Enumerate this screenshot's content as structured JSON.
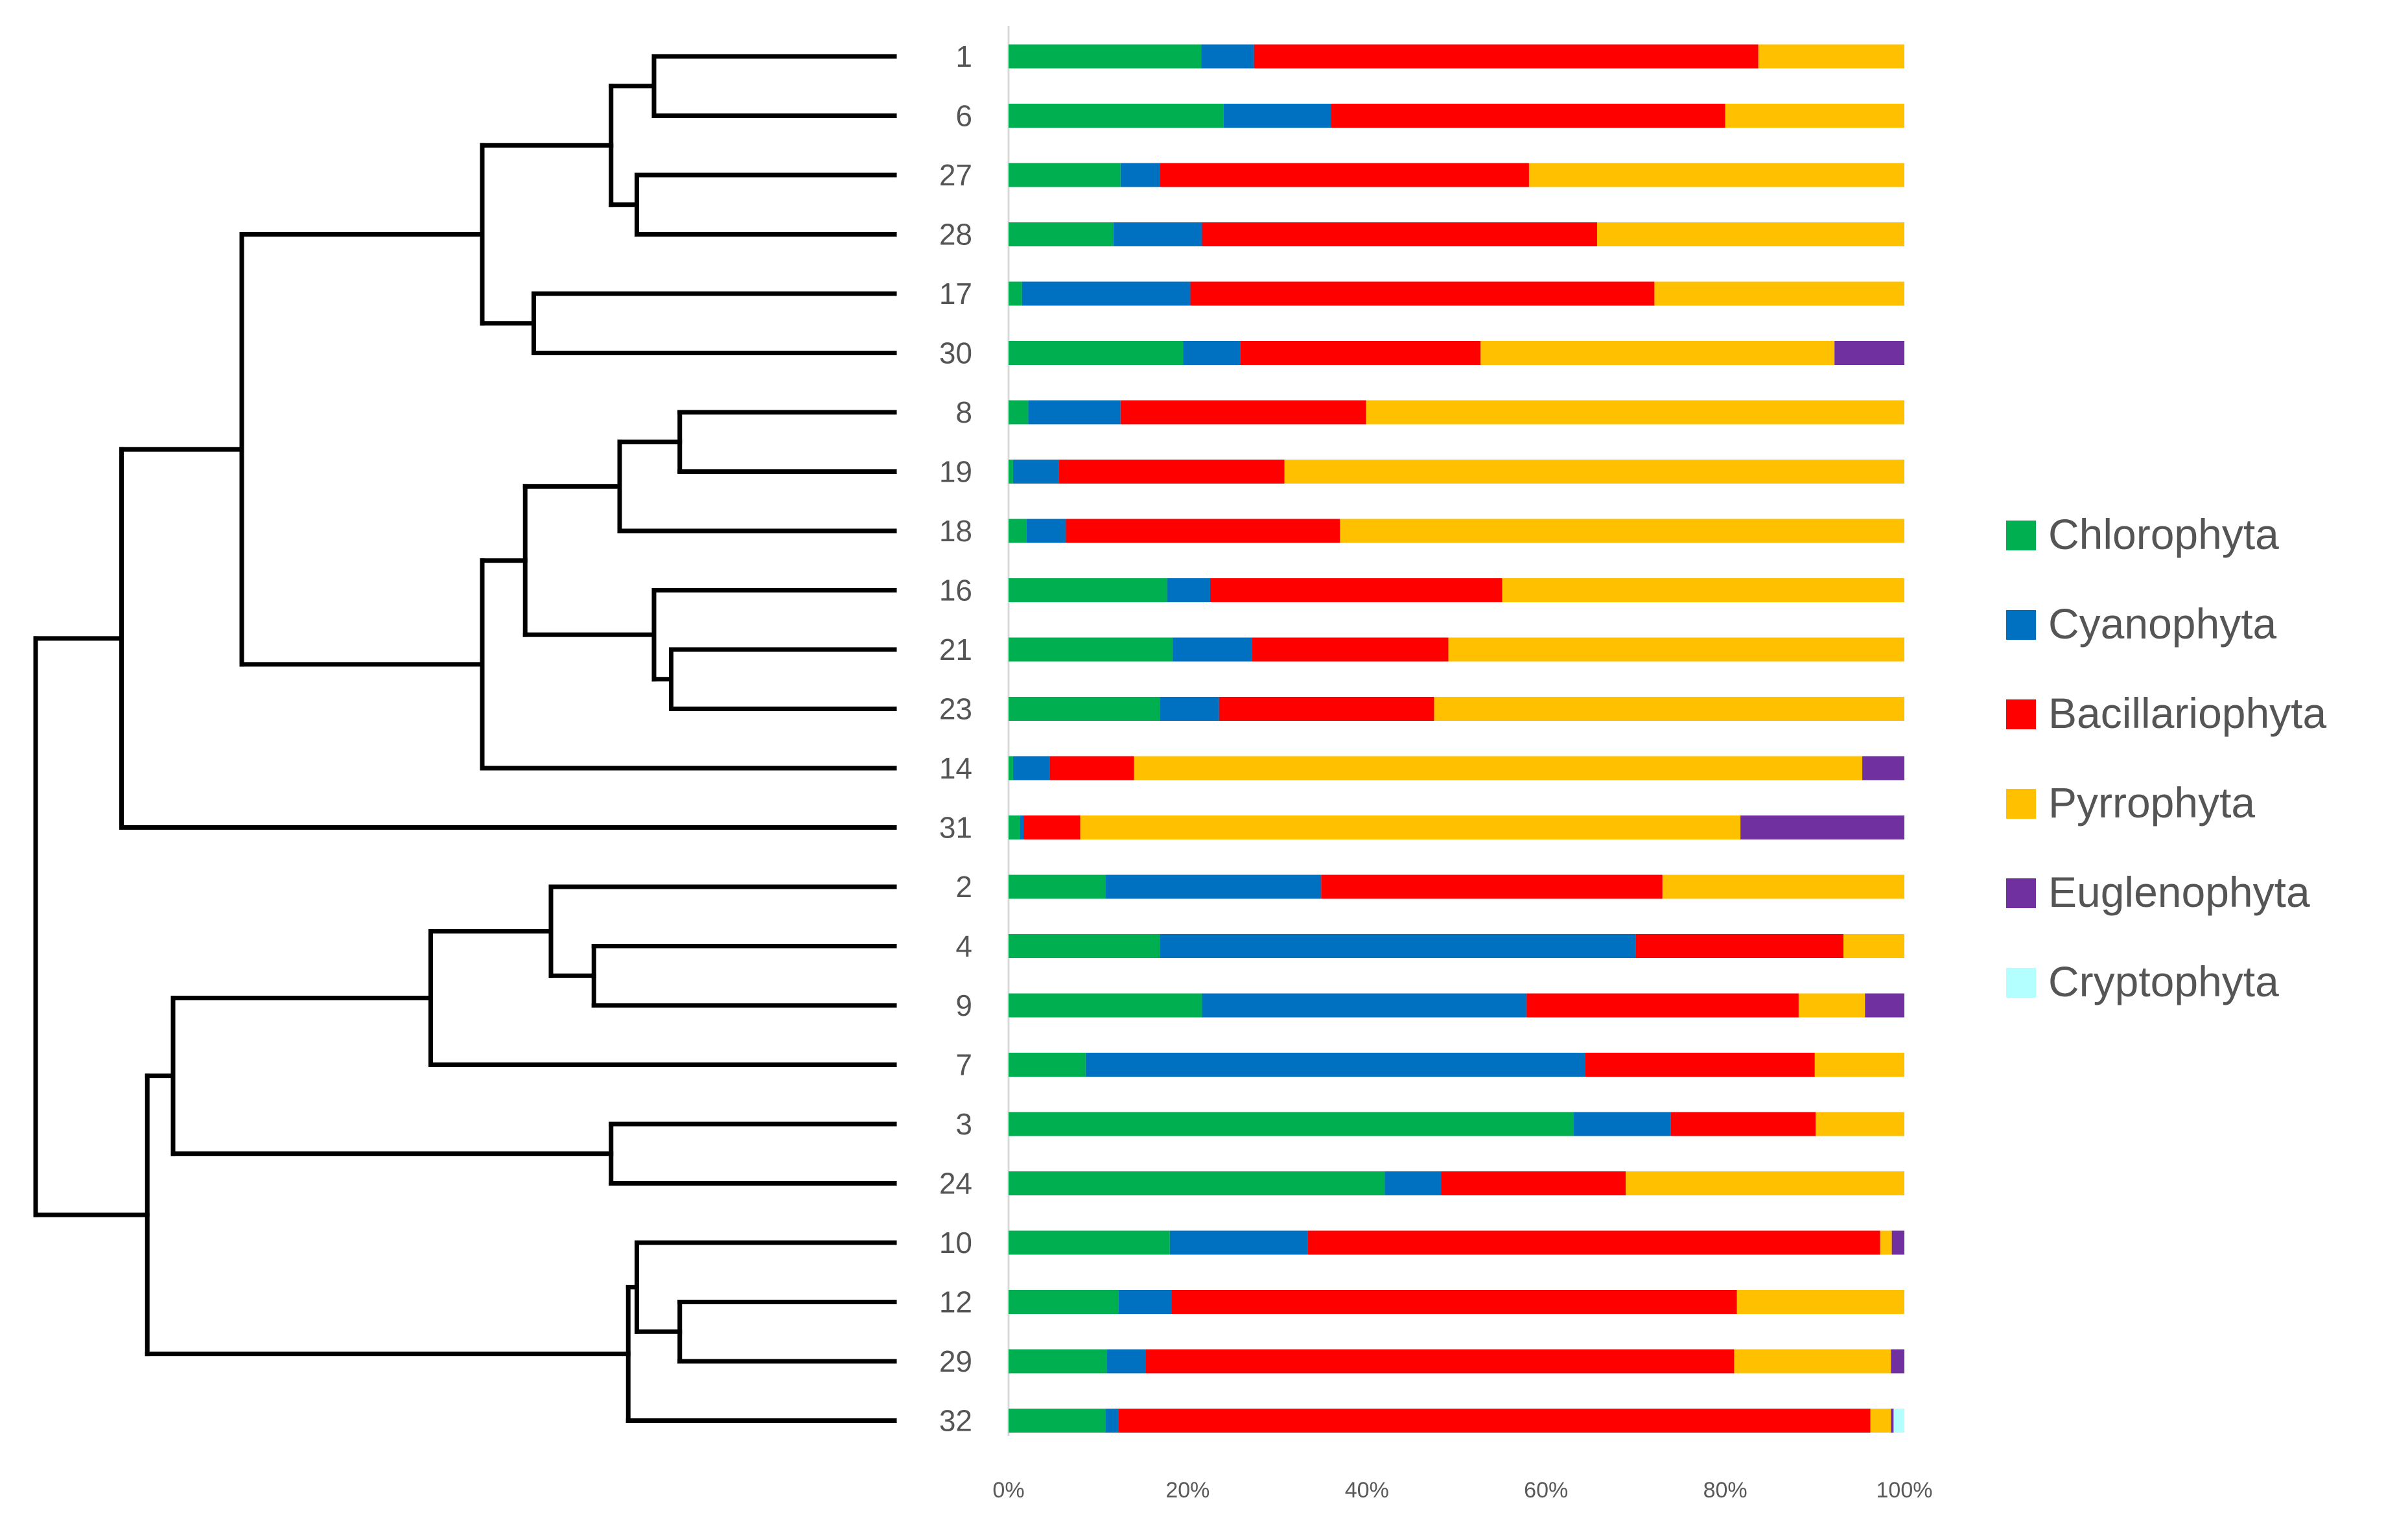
{
  "chart_data": {
    "type": "bar",
    "stacked": "percent",
    "orientation": "horizontal",
    "title": "",
    "xlabel": "",
    "ylabel": "",
    "xlim": [
      0,
      100
    ],
    "x_ticks": [
      "0%",
      "20%",
      "40%",
      "60%",
      "80%",
      "100%"
    ],
    "categories": [
      "1",
      "6",
      "27",
      "28",
      "17",
      "30",
      "8",
      "19",
      "18",
      "16",
      "21",
      "23",
      "14",
      "31",
      "2",
      "4",
      "9",
      "7",
      "3",
      "24",
      "10",
      "12",
      "29",
      "32"
    ],
    "series": [
      {
        "name": "Chlorophyta",
        "color": "#00b050",
        "values": [
          21.5,
          24,
          12.5,
          11.7,
          1.5,
          19.5,
          2.2,
          0.5,
          2,
          17.7,
          18.3,
          16.9,
          0.5,
          1.3,
          10.8,
          16.9,
          21.6,
          8.6,
          63.1,
          42,
          18,
          12.3,
          11,
          10.8
        ]
      },
      {
        "name": "Cyanophyta",
        "color": "#0070c0",
        "values": [
          5.9,
          12,
          4.4,
          9.9,
          18.8,
          6.4,
          10.3,
          5.1,
          4.4,
          4.8,
          8.9,
          6.6,
          4.1,
          0.4,
          24.1,
          53.1,
          36.2,
          55.8,
          10.8,
          6.3,
          15.4,
          5.9,
          4.3,
          1.5
        ]
      },
      {
        "name": "Bacillariophyta",
        "color": "#ff0000",
        "values": [
          56.3,
          44,
          41.2,
          44.1,
          51.8,
          26.8,
          27.4,
          25.2,
          30.6,
          32.6,
          21.9,
          24,
          9.4,
          6.3,
          38.1,
          23.2,
          30.4,
          25.6,
          16.2,
          20.6,
          63.9,
          63.1,
          65.7,
          83.9
        ]
      },
      {
        "name": "Pyrrophyta",
        "color": "#ffc000",
        "values": [
          16.3,
          20,
          41.9,
          34.3,
          27.9,
          39.5,
          60.1,
          69.2,
          63,
          44.9,
          50.9,
          52.5,
          81.3,
          73.7,
          27,
          6.8,
          7.4,
          10,
          9.9,
          31.1,
          1.3,
          18.7,
          17.5,
          2.3
        ]
      },
      {
        "name": "Euglenophyta",
        "color": "#7030a0",
        "values": [
          0,
          0,
          0,
          0,
          0,
          7.8,
          0,
          0,
          0,
          0,
          0,
          0,
          4.7,
          18.3,
          0,
          0,
          4.4,
          0,
          0,
          0,
          1.4,
          0,
          1.5,
          0.3
        ]
      },
      {
        "name": "Cryptophyta",
        "color": "#b3ffff",
        "values": [
          0,
          0,
          0,
          0,
          0,
          0,
          0,
          0,
          0,
          0,
          0,
          0,
          0,
          0,
          0,
          0,
          0,
          0,
          0,
          0,
          0,
          0,
          0,
          1.2
        ]
      }
    ],
    "legend_position": "right",
    "dendrogram": {
      "leaf_order": [
        "1",
        "6",
        "27",
        "28",
        "17",
        "30",
        "8",
        "19",
        "18",
        "16",
        "21",
        "23",
        "14",
        "31",
        "2",
        "4",
        "9",
        "7",
        "3",
        "24",
        "10",
        "12",
        "29",
        "32"
      ],
      "merges": [
        {
          "left": "1",
          "right": "6",
          "height": 0.28
        },
        {
          "left": "27",
          "right": "28",
          "height": 0.3
        },
        {
          "left": "1,6",
          "right": "27,28",
          "height": 0.33
        },
        {
          "left": "17",
          "right": "30",
          "height": 0.42
        },
        {
          "left": "1,6,27,28",
          "right": "17,30",
          "height": 0.48
        },
        {
          "left": "8",
          "right": "19",
          "height": 0.25
        },
        {
          "left": "8,19",
          "right": "18",
          "height": 0.32
        },
        {
          "left": "21",
          "right": "23",
          "height": 0.26
        },
        {
          "left": "16",
          "right": "21,23",
          "height": 0.28
        },
        {
          "left": "8,19,18",
          "right": "16,21,23",
          "height": 0.43
        },
        {
          "left": "8..23",
          "right": "14",
          "height": 0.48
        },
        {
          "left": "1..30",
          "right": "8..14",
          "height": 0.76
        },
        {
          "left": "1..14",
          "right": "31",
          "height": 0.9
        },
        {
          "left": "4",
          "right": "9",
          "height": 0.35
        },
        {
          "left": "2",
          "right": "4,9",
          "height": 0.4
        },
        {
          "left": "2,4,9",
          "right": "7",
          "height": 0.54
        },
        {
          "left": "3",
          "right": "24",
          "height": 0.33
        },
        {
          "left": "2,4,9,7",
          "right": "3,24",
          "height": 0.84
        },
        {
          "left": "12",
          "right": "29",
          "height": 0.25
        },
        {
          "left": "10",
          "right": "12,29",
          "height": 0.3
        },
        {
          "left": "10,12,29",
          "right": "32",
          "height": 0.31
        },
        {
          "left": "2..24",
          "right": "10..32",
          "height": 0.87
        },
        {
          "left": "1..31",
          "right": "2..32",
          "height": 1.0
        }
      ]
    }
  }
}
